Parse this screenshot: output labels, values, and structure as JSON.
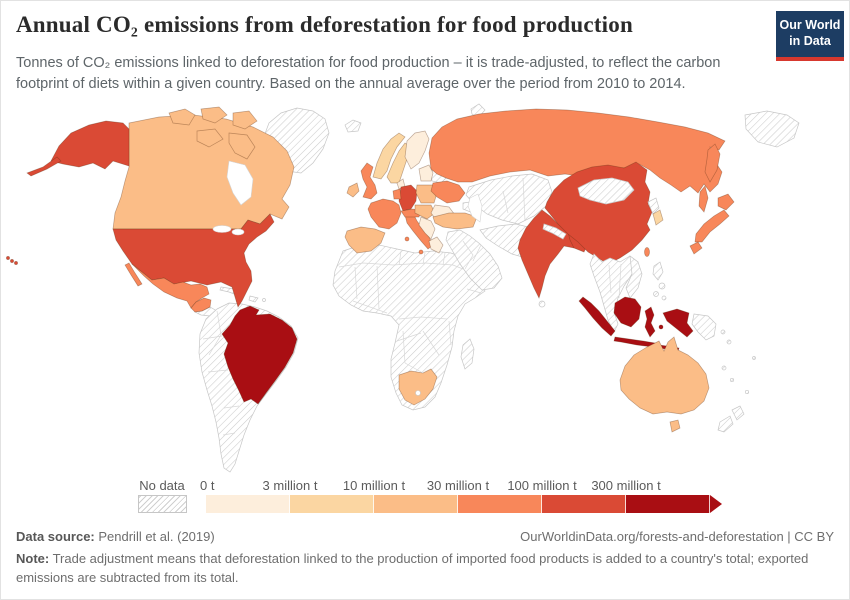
{
  "header": {
    "title": "Annual CO₂ emissions from deforestation for food production",
    "subtitle": "Tonnes of CO₂ emissions linked to deforestation for food production – it is trade-adjusted, to reflect the carbon footprint of diets within a given country. Based on the annual average over the period from 2010 to 2014."
  },
  "logo": {
    "line1": "Our World",
    "line2": "in Data",
    "bg_color": "#1d3d63",
    "accent_color": "#d7382e"
  },
  "legend": {
    "no_data_label": "No data",
    "tick_labels": [
      "0 t",
      "3 million t",
      "10 million t",
      "30 million t",
      "100 million t",
      "300 million t"
    ],
    "band_colors": [
      "#fdeedc",
      "#fbd6a2",
      "#fbbd87",
      "#f8875a",
      "#da4a35",
      "#a90e13"
    ]
  },
  "footer": {
    "source_label": "Data source:",
    "source_text": " Pendrill et al. (2019)",
    "link_text": "OurWorldinData.org/forests-and-deforestation | CC BY",
    "note_label": "Note:",
    "note_text": " Trade adjustment means that deforestation linked to the production of imported food products is added to a country's total; exported emissions are subtracted from its total."
  },
  "chart_data": {
    "type": "choropleth",
    "title": "Annual CO₂ emissions from deforestation for food production",
    "unit": "tonnes of CO₂, annual average 2010–2014",
    "bins": [
      "0–3 million t",
      "3–10 million t",
      "10–30 million t",
      "30–100 million t",
      "100–300 million t",
      "300+ million t"
    ],
    "countries": {
      "usa": 4,
      "alaska": 4,
      "hawaii": 4,
      "canada": 2,
      "mexico": 3,
      "brazil": 5,
      "norway": 1,
      "sweden": 1,
      "finland": 0,
      "baltics": 0,
      "denmark": 0,
      "uk": 3,
      "ireland": 2,
      "france": 3,
      "benelux": 3,
      "germany": 4,
      "iberia": 2,
      "italy": 3,
      "alpine": 3,
      "poland": 2,
      "czech-hungary": 2,
      "romania-bulgaria": 0,
      "balkans": 0,
      "greece": 0,
      "ukraine": 3,
      "turkey": 2,
      "russia": 3,
      "south-africa": 2,
      "india": 4,
      "china": 4,
      "south-korea": 1,
      "japan": 3,
      "taiwan": 3,
      "indonesia": 5,
      "australia": 2
    },
    "no_data": [
      "greenland",
      "iceland",
      "central-america",
      "caribbean",
      "south-america-other",
      "africa-other",
      "madagascar",
      "belarus",
      "caucasus",
      "kazakhstan-central-asia",
      "middle-east",
      "iran-afghanistan",
      "pakistan",
      "nepal",
      "sri-lanka",
      "mongolia",
      "southeast-asia",
      "north-korea",
      "philippines",
      "papua-new-guinea",
      "new-zealand",
      "pacific-islands",
      "arctic-islands-russia",
      "novaya-zemlya"
    ]
  }
}
